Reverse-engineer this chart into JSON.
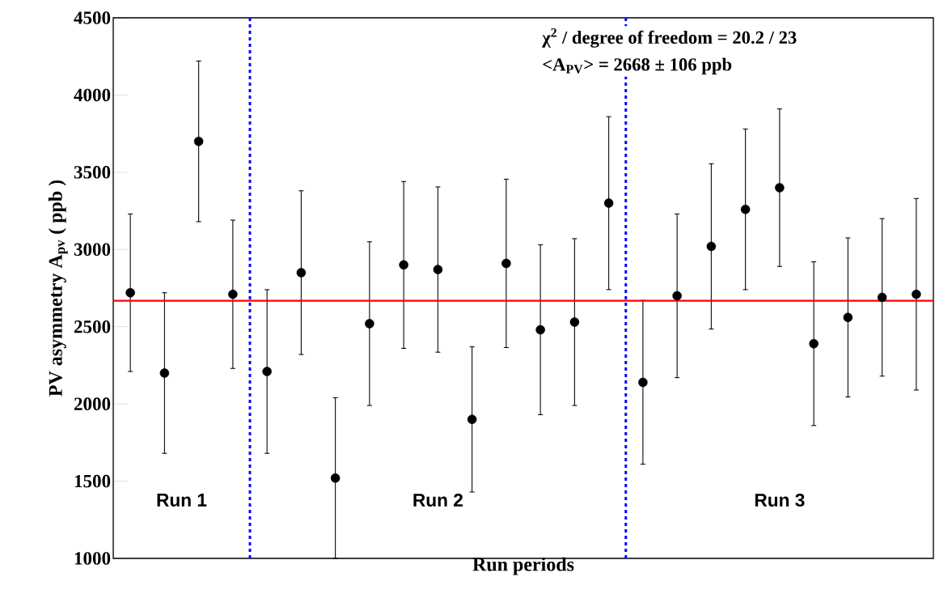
{
  "chart_data": {
    "type": "scatter",
    "xlabel": "Run periods",
    "ylabel": "PV asymmetry A$_{pv}$ ( ppb )",
    "categories": [
      null,
      null,
      null,
      null,
      null,
      null,
      null,
      null,
      null,
      null,
      null,
      null,
      null,
      null,
      null,
      null,
      null,
      null,
      null,
      null,
      null,
      null,
      null,
      null
    ],
    "series": [
      {
        "color": "#000000",
        "values": [
          2720,
          2200,
          3700,
          2710,
          2210,
          2850,
          1520,
          2520,
          2900,
          2870,
          1900,
          2910,
          2480,
          2530,
          3300,
          2140,
          2700,
          3020,
          3260,
          3400,
          2390,
          2560,
          2690,
          2710
        ],
        "errors": [
          510,
          520,
          520,
          480,
          530,
          530,
          520,
          530,
          540,
          535,
          470,
          545,
          550,
          540,
          560,
          530,
          530,
          535,
          520,
          510,
          530,
          515,
          510,
          620
        ]
      }
    ],
    "marker": "circle",
    "grid": false,
    "tick_labels": "y",
    "ylim": [
      1000,
      4500
    ],
    "yticks": [
      1000,
      1500,
      2000,
      2500,
      3000,
      3500,
      4000,
      4500
    ],
    "ref_lines": [
      {
        "axis": "y",
        "value": 2668,
        "color": "#ff0000",
        "line_style": "solid"
      }
    ],
    "annotations": [
      "χ$^{2}$ / degree of freedom = 20.2 / 23",
      "<A$_{PV}$> = 2668  ± 106 ppb",
      "Run 1",
      "Run 2",
      "Run 3"
    ]
  }
}
